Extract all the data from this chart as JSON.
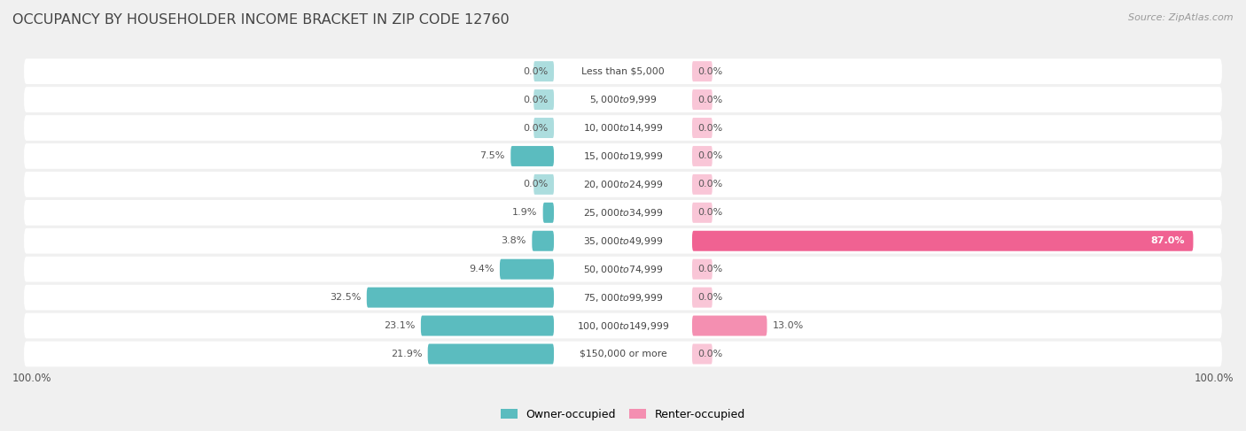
{
  "title": "OCCUPANCY BY HOUSEHOLDER INCOME BRACKET IN ZIP CODE 12760",
  "source": "Source: ZipAtlas.com",
  "categories": [
    "Less than $5,000",
    "$5,000 to $9,999",
    "$10,000 to $14,999",
    "$15,000 to $19,999",
    "$20,000 to $24,999",
    "$25,000 to $34,999",
    "$35,000 to $49,999",
    "$50,000 to $74,999",
    "$75,000 to $99,999",
    "$100,000 to $149,999",
    "$150,000 or more"
  ],
  "owner_values": [
    0.0,
    0.0,
    0.0,
    7.5,
    0.0,
    1.9,
    3.8,
    9.4,
    32.5,
    23.1,
    21.9
  ],
  "renter_values": [
    0.0,
    0.0,
    0.0,
    0.0,
    0.0,
    0.0,
    87.0,
    0.0,
    0.0,
    13.0,
    0.0
  ],
  "owner_color": "#5bbcbf",
  "renter_color": "#f48fb1",
  "renter_highlight_color": "#f06292",
  "owner_label": "Owner-occupied",
  "renter_label": "Renter-occupied",
  "background_color": "#f0f0f0",
  "row_bg_color": "#ffffff",
  "title_color": "#555555",
  "label_color": "#555555",
  "source_color": "#999999",
  "max_val": 100.0
}
